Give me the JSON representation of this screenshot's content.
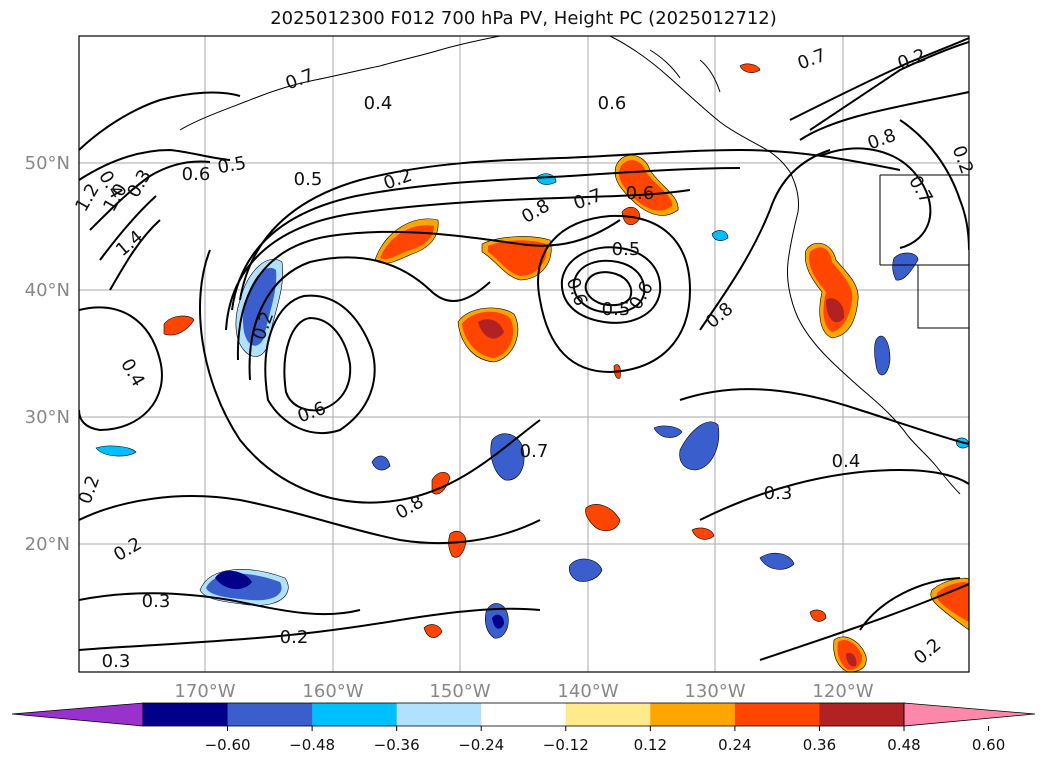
{
  "title": "2025012300 F012 700 hPa PV, Height PC (2025012712)",
  "map": {
    "lat_labels": [
      "50°N",
      "40°N",
      "30°N",
      "20°N"
    ],
    "lon_labels": [
      "170°W",
      "160°W",
      "150°W",
      "140°W",
      "130°W",
      "120°W"
    ],
    "contour_labels": [
      "0.7",
      "0.4",
      "0.4",
      "0.5",
      "0.6",
      "0.6",
      "0.5",
      "0.2",
      "0.3",
      "1.0",
      "1.2",
      "1.4",
      "0.8",
      "0.7",
      "0.6",
      "0.5",
      "0.6",
      "0.5",
      "0.8",
      "0.7",
      "0.6",
      "0.2",
      "0.8",
      "0.6",
      "0.7",
      "0.8",
      "0.4",
      "0.3",
      "0.2",
      "0.2",
      "0.3",
      "0.4",
      "0.7",
      "0.2",
      "0.3",
      "0.2",
      "0.2",
      "0.2"
    ]
  },
  "colorbar": {
    "ticks": [
      "−0.60",
      "−0.48",
      "−0.36",
      "−0.24",
      "−0.12",
      "0.12",
      "0.24",
      "0.36",
      "0.48",
      "0.60"
    ],
    "colors": [
      "#9932cc",
      "#00008b",
      "#3a5fcd",
      "#00bfff",
      "#b0e2ff",
      "#ffffff",
      "#ffeb8c",
      "#ffa500",
      "#ff4500",
      "#b22222",
      "#ff88aa"
    ]
  }
}
